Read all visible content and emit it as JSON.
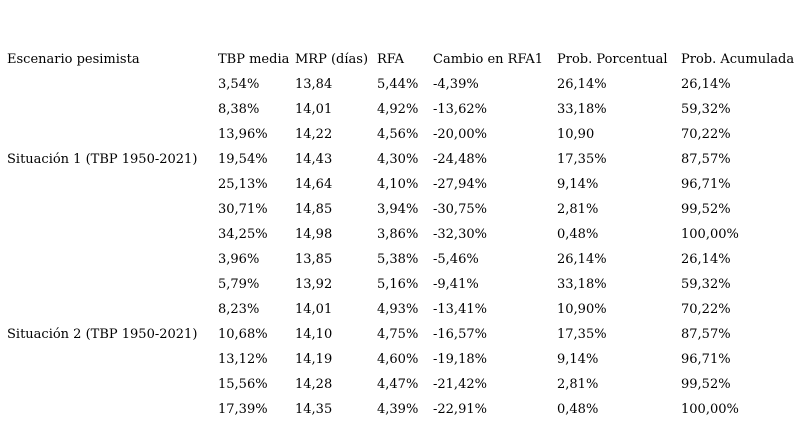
{
  "colors": {
    "background": "#ffffff",
    "text": "#000000"
  },
  "table": {
    "columns": [
      "Escenario pesimista",
      "TBP media",
      "MRP (días)",
      "RFA",
      "Cambio en RFA1",
      "Prob. Porcentual",
      "Prob. Acumulada"
    ],
    "rows": [
      [
        "",
        "3,54%",
        "13,84",
        "5,44%",
        "-4,39%",
        "26,14%",
        "26,14%"
      ],
      [
        "",
        "8,38%",
        "14,01",
        "4,92%",
        "-13,62%",
        "33,18%",
        "59,32%"
      ],
      [
        "",
        "13,96%",
        "14,22",
        "4,56%",
        "-20,00%",
        "10,90",
        "70,22%"
      ],
      [
        "Situación 1 (TBP 1950-2021)",
        "19,54%",
        "14,43",
        "4,30%",
        "-24,48%",
        "17,35%",
        "87,57%"
      ],
      [
        "",
        "25,13%",
        "14,64",
        "4,10%",
        "-27,94%",
        "9,14%",
        "96,71%"
      ],
      [
        "",
        "30,71%",
        "14,85",
        "3,94%",
        "-30,75%",
        "2,81%",
        "99,52%"
      ],
      [
        "",
        "34,25%",
        "14,98",
        "3,86%",
        "-32,30%",
        "0,48%",
        "100,00%"
      ],
      [
        "",
        "3,96%",
        "13,85",
        "5,38%",
        "-5,46%",
        "26,14%",
        "26,14%"
      ],
      [
        "",
        "5,79%",
        "13,92",
        "5,16%",
        "-9,41%",
        "33,18%",
        "59,32%"
      ],
      [
        "",
        "8,23%",
        "14,01",
        "4,93%",
        "-13,41%",
        "10,90%",
        "70,22%"
      ],
      [
        "Situación 2 (TBP 1950-2021)",
        "10,68%",
        "14,10",
        "4,75%",
        "-16,57%",
        "17,35%",
        "87,57%"
      ],
      [
        "",
        "13,12%",
        "14,19",
        "4,60%",
        "-19,18%",
        "9,14%",
        "96,71%"
      ],
      [
        "",
        "15,56%",
        "14,28",
        "4,47%",
        "-21,42%",
        "2,81%",
        "99,52%"
      ],
      [
        "",
        "17,39%",
        "14,35",
        "4,39%",
        "-22,91%",
        "0,48%",
        "100,00%"
      ]
    ]
  }
}
